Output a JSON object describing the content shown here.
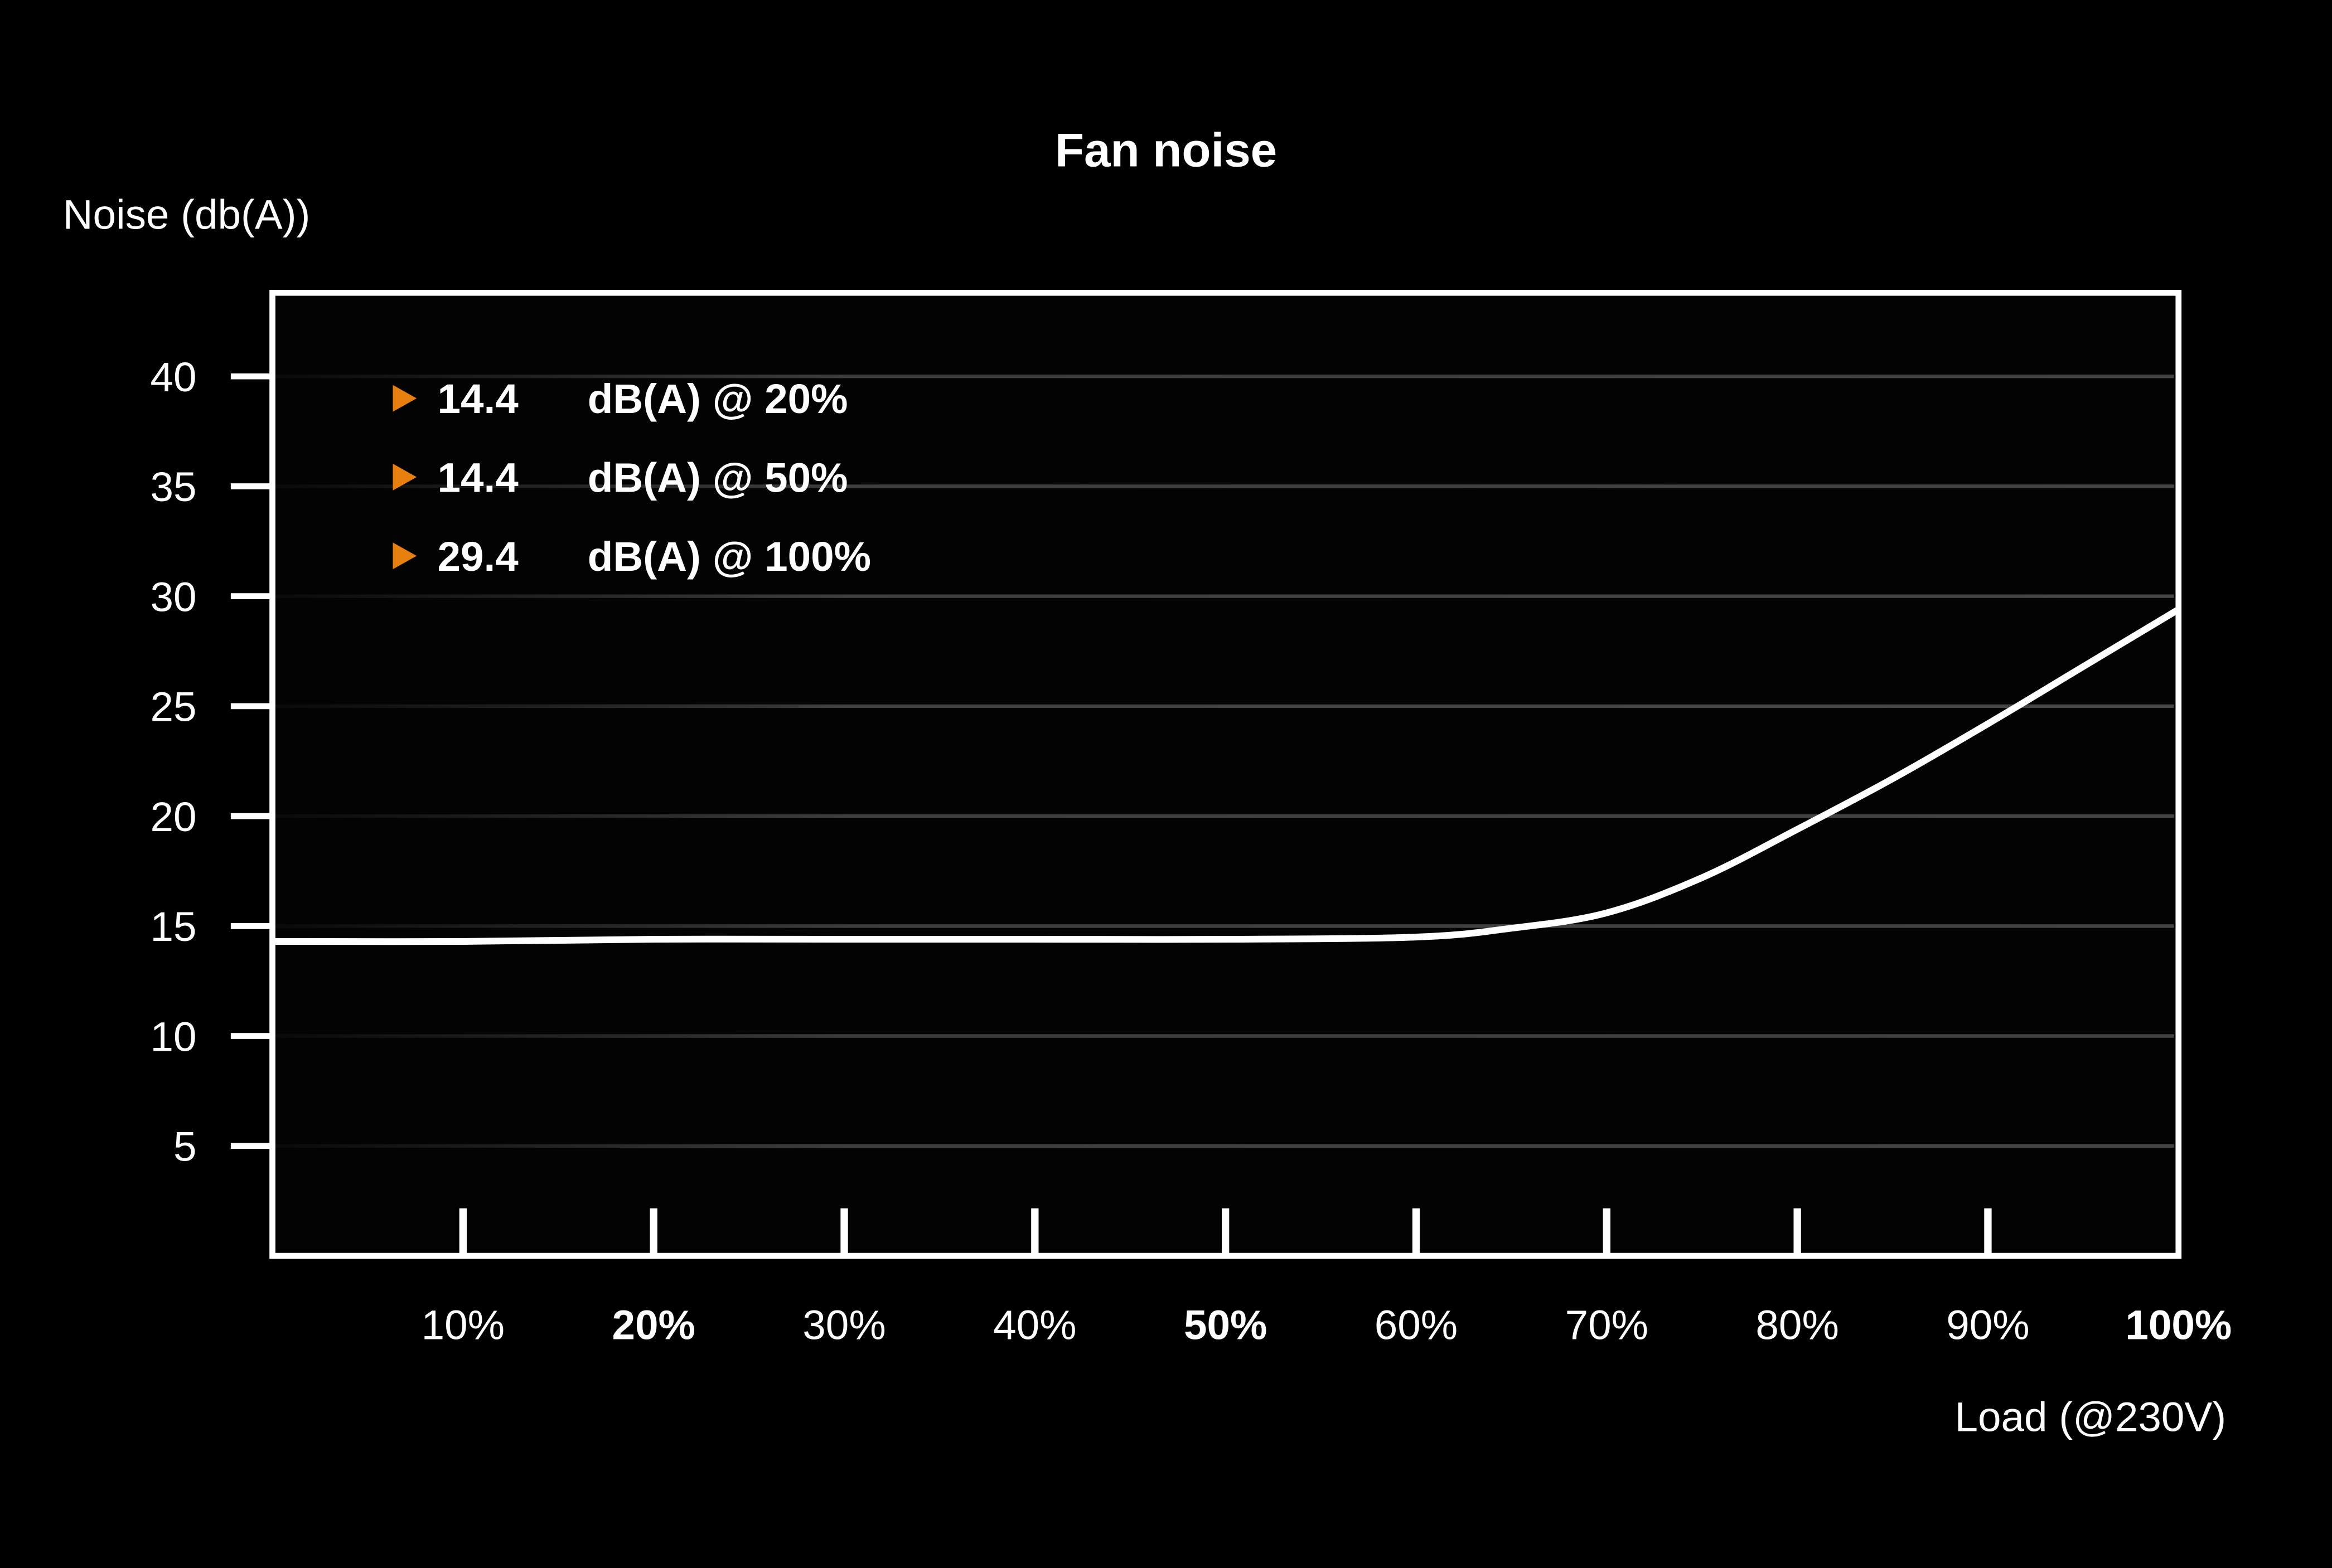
{
  "chart_data": {
    "type": "line",
    "title": "Fan noise",
    "ylabel": "Noise (db(A))",
    "xlabel": "Load (@230V)",
    "ylim": [
      0,
      43.8
    ],
    "xlim": [
      0,
      100
    ],
    "grid": true,
    "y_ticks": [
      5,
      10,
      15,
      20,
      25,
      30,
      35,
      40
    ],
    "x_ticks": [
      {
        "value": 10,
        "label": "10%",
        "bold": false
      },
      {
        "value": 20,
        "label": "20%",
        "bold": true
      },
      {
        "value": 30,
        "label": "30%",
        "bold": false
      },
      {
        "value": 40,
        "label": "40%",
        "bold": false
      },
      {
        "value": 50,
        "label": "50%",
        "bold": true
      },
      {
        "value": 60,
        "label": "60%",
        "bold": false
      },
      {
        "value": 70,
        "label": "70%",
        "bold": false
      },
      {
        "value": 80,
        "label": "80%",
        "bold": false
      },
      {
        "value": 90,
        "label": "90%",
        "bold": false
      },
      {
        "value": 100,
        "label": "100%",
        "bold": true
      }
    ],
    "series": [
      {
        "x": [
          0,
          10,
          20,
          30,
          40,
          50,
          60,
          65,
          70,
          75,
          80,
          85,
          90,
          95,
          100
        ],
        "y": [
          14.3,
          14.3,
          14.4,
          14.4,
          14.4,
          14.4,
          14.5,
          14.9,
          15.6,
          17.2,
          19.4,
          21.7,
          24.2,
          26.8,
          29.4
        ],
        "color": "#ffffff"
      }
    ],
    "annotations": [
      {
        "value": "14.4",
        "text": "dB(A) @ 20%"
      },
      {
        "value": "14.4",
        "text": "dB(A) @ 50%"
      },
      {
        "value": "29.4",
        "text": "dB(A) @ 100%"
      }
    ],
    "marker_color": "#e8800f",
    "gridline_color": "#444444",
    "background": "#000000",
    "plot_background": "#030304"
  }
}
